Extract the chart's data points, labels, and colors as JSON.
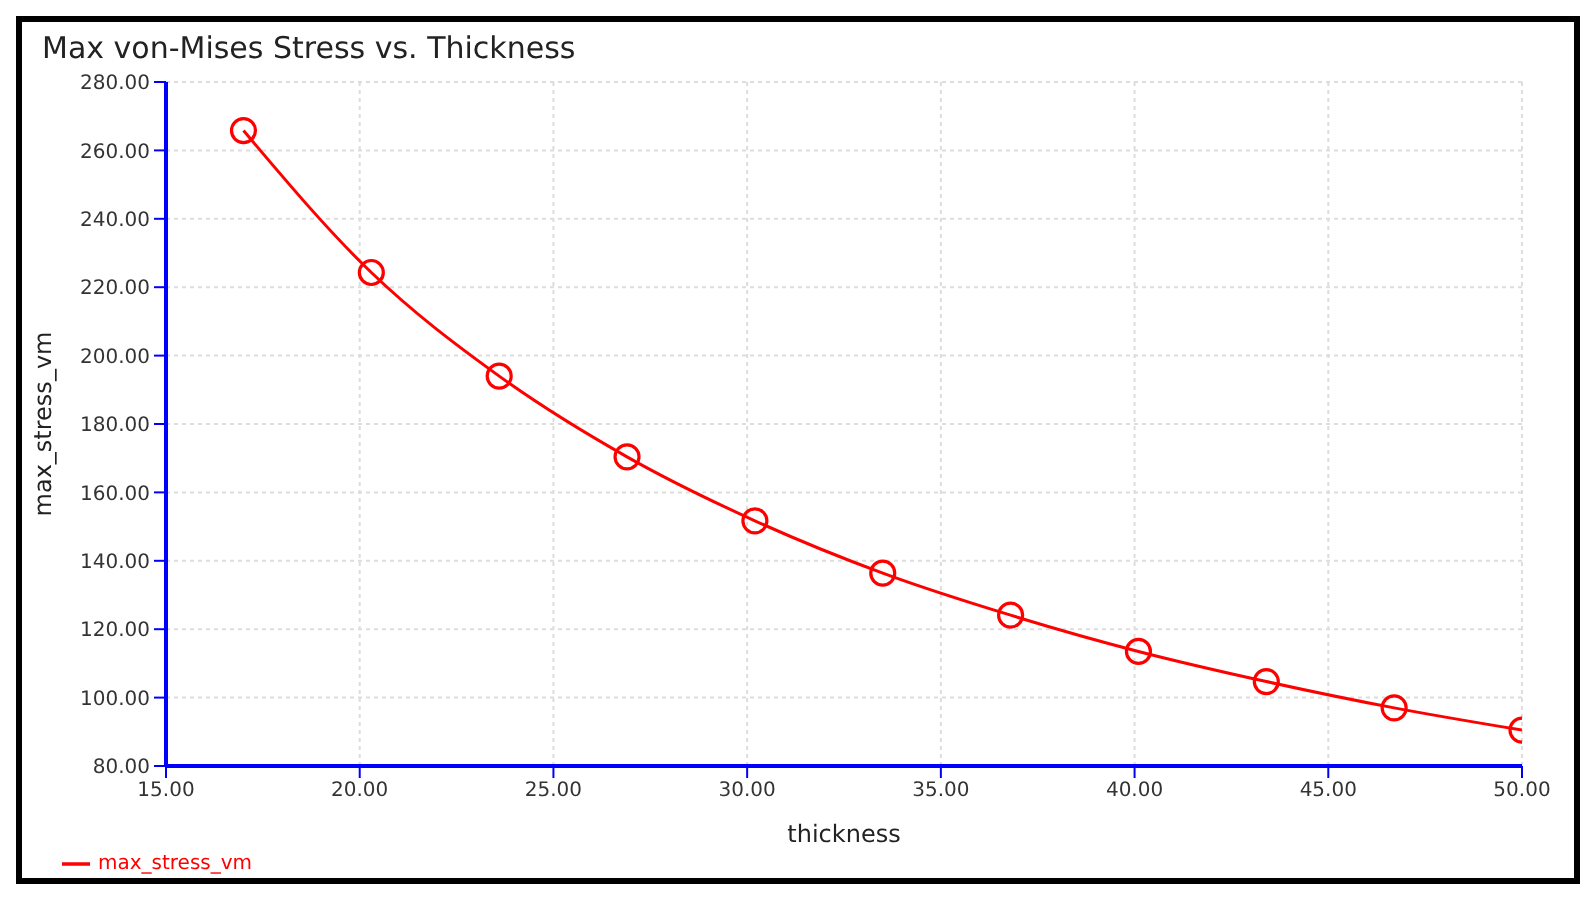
{
  "chart_data": {
    "type": "line",
    "title": "Max von-Mises Stress vs. Thickness",
    "xlabel": "thickness",
    "ylabel": "max_stress_vm",
    "x": [
      17,
      20.3,
      23.6,
      26.9,
      30.2,
      33.5,
      36.8,
      40.1,
      43.4,
      46.7,
      50
    ],
    "series": [
      {
        "name": "max_stress_vm",
        "color": "#ff0000",
        "values": [
          265.8,
          224.3,
          194.0,
          170.4,
          151.7,
          136.4,
          124.1,
          113.5,
          104.7,
          97.0,
          90.5
        ]
      }
    ],
    "xlim": [
      15,
      50
    ],
    "xticks": [
      {
        "value": 15,
        "label": "15.00"
      },
      {
        "value": 20,
        "label": "20.00"
      },
      {
        "value": 25,
        "label": "25.00"
      },
      {
        "value": 30,
        "label": "30.00"
      },
      {
        "value": 35,
        "label": "35.00"
      },
      {
        "value": 40,
        "label": "40.00"
      },
      {
        "value": 45,
        "label": "45.00"
      },
      {
        "value": 50,
        "label": "50.00"
      }
    ],
    "ylim": [
      80,
      280
    ],
    "yticks": [
      {
        "value": 80,
        "label": "80.00"
      },
      {
        "value": 100,
        "label": "100.00"
      },
      {
        "value": 120,
        "label": "120.00"
      },
      {
        "value": 140,
        "label": "140.00"
      },
      {
        "value": 160,
        "label": "160.00"
      },
      {
        "value": 180,
        "label": "180.00"
      },
      {
        "value": 200,
        "label": "200.00"
      },
      {
        "value": 220,
        "label": "220.00"
      },
      {
        "value": 240,
        "label": "240.00"
      },
      {
        "value": 260,
        "label": "260.00"
      },
      {
        "value": 280,
        "label": "280.00"
      }
    ],
    "grid": true,
    "legend": "bottom left",
    "marker": "circle",
    "line_style": "solid"
  }
}
